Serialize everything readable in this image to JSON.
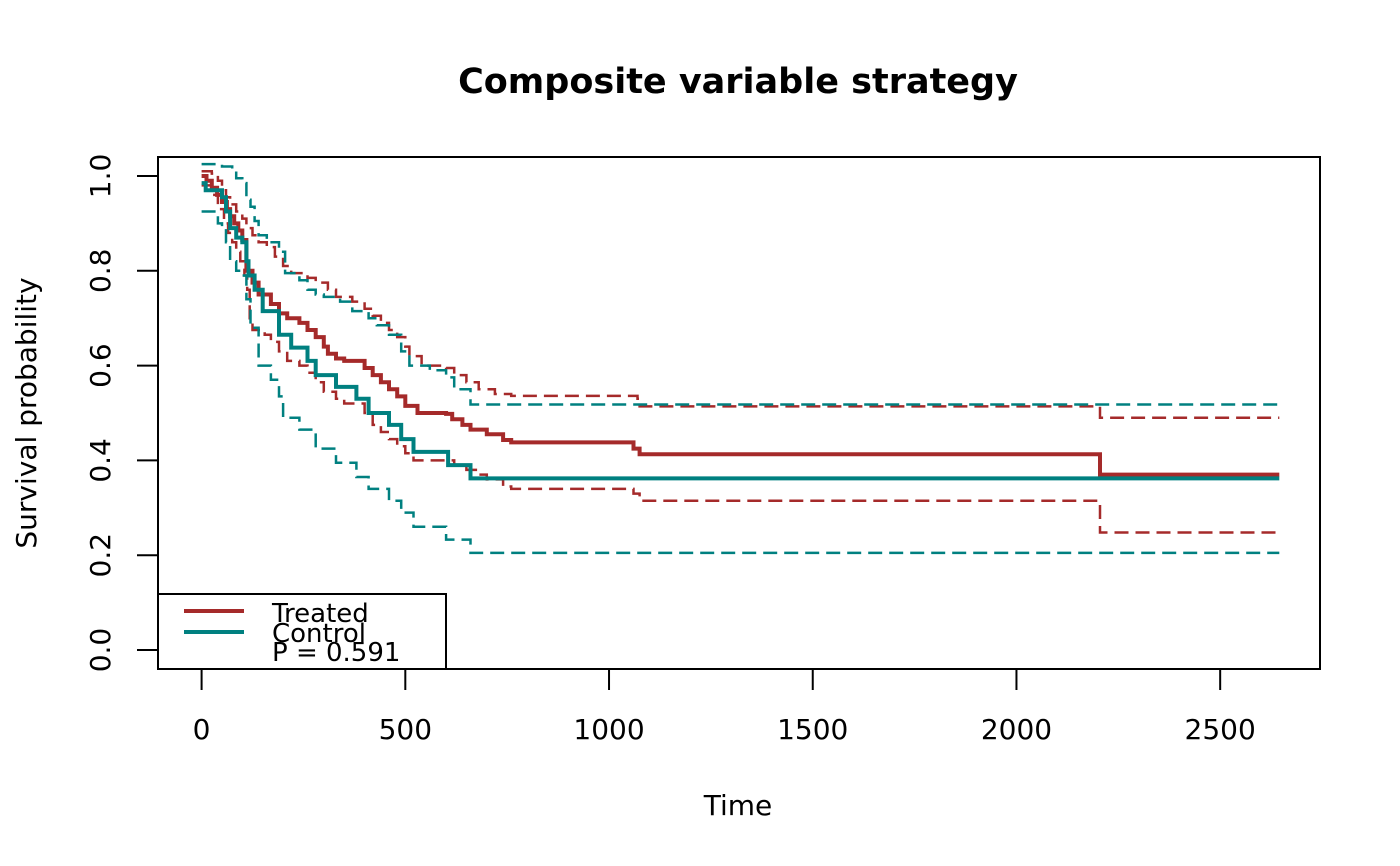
{
  "chart_data": {
    "type": "line",
    "subtype": "kaplan-meier-step",
    "title": "Composite variable strategy",
    "xlabel": "Time",
    "ylabel": "Survival probability",
    "xlim": [
      -107,
      2745
    ],
    "ylim": [
      -0.04,
      1.04
    ],
    "xticks": [
      0,
      500,
      1000,
      1500,
      2000,
      2500
    ],
    "yticks": [
      0.0,
      0.2,
      0.4,
      0.6,
      0.8,
      1.0
    ],
    "xtick_labels": [
      "0",
      "500",
      "1000",
      "1500",
      "2000",
      "2500"
    ],
    "ytick_labels": [
      "0.0",
      "0.2",
      "0.4",
      "0.6",
      "0.8",
      "1.0"
    ],
    "grid": false,
    "legend": {
      "position": "bottom-left",
      "entries": [
        "Treated",
        "Control"
      ],
      "note": "P = 0.591"
    },
    "series": [
      {
        "name": "Treated",
        "color": "#a52a2a",
        "style": "solid",
        "points": [
          [
            0,
            1.0
          ],
          [
            12,
            0.99
          ],
          [
            25,
            0.975
          ],
          [
            38,
            0.96
          ],
          [
            50,
            0.945
          ],
          [
            62,
            0.93
          ],
          [
            70,
            0.915
          ],
          [
            80,
            0.9
          ],
          [
            90,
            0.885
          ],
          [
            100,
            0.865
          ],
          [
            110,
            0.8
          ],
          [
            125,
            0.775
          ],
          [
            140,
            0.75
          ],
          [
            170,
            0.73
          ],
          [
            190,
            0.71
          ],
          [
            210,
            0.7
          ],
          [
            240,
            0.69
          ],
          [
            260,
            0.675
          ],
          [
            280,
            0.66
          ],
          [
            300,
            0.64
          ],
          [
            310,
            0.625
          ],
          [
            330,
            0.615
          ],
          [
            350,
            0.61
          ],
          [
            400,
            0.595
          ],
          [
            420,
            0.58
          ],
          [
            440,
            0.565
          ],
          [
            460,
            0.55
          ],
          [
            480,
            0.535
          ],
          [
            500,
            0.515
          ],
          [
            530,
            0.5
          ],
          [
            600,
            0.498
          ],
          [
            615,
            0.487
          ],
          [
            640,
            0.475
          ],
          [
            660,
            0.465
          ],
          [
            700,
            0.455
          ],
          [
            740,
            0.443
          ],
          [
            760,
            0.438
          ],
          [
            1060,
            0.425
          ],
          [
            1075,
            0.413
          ],
          [
            2200,
            0.413
          ],
          [
            2205,
            0.37
          ],
          [
            2645,
            0.37
          ]
        ]
      },
      {
        "name": "Treated 95% CI upper",
        "color": "#a52a2a",
        "style": "dashed",
        "points": [
          [
            0,
            1.01
          ],
          [
            25,
            1.005
          ],
          [
            40,
            0.99
          ],
          [
            50,
            0.97
          ],
          [
            60,
            0.955
          ],
          [
            70,
            0.94
          ],
          [
            85,
            0.925
          ],
          [
            100,
            0.91
          ],
          [
            110,
            0.89
          ],
          [
            125,
            0.875
          ],
          [
            140,
            0.86
          ],
          [
            160,
            0.85
          ],
          [
            180,
            0.83
          ],
          [
            200,
            0.81
          ],
          [
            220,
            0.795
          ],
          [
            260,
            0.785
          ],
          [
            280,
            0.775
          ],
          [
            310,
            0.76
          ],
          [
            330,
            0.745
          ],
          [
            370,
            0.735
          ],
          [
            400,
            0.72
          ],
          [
            420,
            0.705
          ],
          [
            440,
            0.69
          ],
          [
            460,
            0.675
          ],
          [
            480,
            0.66
          ],
          [
            500,
            0.64
          ],
          [
            510,
            0.62
          ],
          [
            540,
            0.6
          ],
          [
            600,
            0.595
          ],
          [
            620,
            0.58
          ],
          [
            650,
            0.565
          ],
          [
            680,
            0.55
          ],
          [
            720,
            0.54
          ],
          [
            760,
            0.536
          ],
          [
            1070,
            0.53
          ],
          [
            1075,
            0.514
          ],
          [
            2200,
            0.514
          ],
          [
            2205,
            0.49
          ],
          [
            2645,
            0.49
          ]
        ]
      },
      {
        "name": "Treated 95% CI lower",
        "color": "#a52a2a",
        "style": "dashed",
        "points": [
          [
            0,
            0.98
          ],
          [
            25,
            0.96
          ],
          [
            40,
            0.93
          ],
          [
            55,
            0.9
          ],
          [
            65,
            0.88
          ],
          [
            75,
            0.86
          ],
          [
            85,
            0.84
          ],
          [
            95,
            0.82
          ],
          [
            105,
            0.79
          ],
          [
            112,
            0.76
          ],
          [
            118,
            0.7
          ],
          [
            125,
            0.675
          ],
          [
            155,
            0.665
          ],
          [
            170,
            0.65
          ],
          [
            190,
            0.63
          ],
          [
            210,
            0.61
          ],
          [
            240,
            0.6
          ],
          [
            260,
            0.585
          ],
          [
            280,
            0.565
          ],
          [
            300,
            0.545
          ],
          [
            330,
            0.53
          ],
          [
            350,
            0.52
          ],
          [
            400,
            0.5
          ],
          [
            420,
            0.475
          ],
          [
            440,
            0.46
          ],
          [
            460,
            0.445
          ],
          [
            480,
            0.43
          ],
          [
            500,
            0.415
          ],
          [
            520,
            0.4
          ],
          [
            600,
            0.4
          ],
          [
            620,
            0.39
          ],
          [
            650,
            0.38
          ],
          [
            680,
            0.37
          ],
          [
            700,
            0.36
          ],
          [
            740,
            0.345
          ],
          [
            760,
            0.34
          ],
          [
            1060,
            0.33
          ],
          [
            1075,
            0.315
          ],
          [
            2200,
            0.315
          ],
          [
            2205,
            0.248
          ],
          [
            2645,
            0.248
          ]
        ]
      },
      {
        "name": "Control",
        "color": "#008080",
        "style": "solid",
        "points": [
          [
            0,
            0.985
          ],
          [
            10,
            0.97
          ],
          [
            50,
            0.955
          ],
          [
            60,
            0.925
          ],
          [
            70,
            0.89
          ],
          [
            85,
            0.87
          ],
          [
            100,
            0.86
          ],
          [
            110,
            0.82
          ],
          [
            115,
            0.79
          ],
          [
            130,
            0.76
          ],
          [
            150,
            0.715
          ],
          [
            190,
            0.665
          ],
          [
            220,
            0.638
          ],
          [
            260,
            0.61
          ],
          [
            280,
            0.58
          ],
          [
            330,
            0.555
          ],
          [
            380,
            0.53
          ],
          [
            410,
            0.5
          ],
          [
            460,
            0.475
          ],
          [
            490,
            0.445
          ],
          [
            520,
            0.418
          ],
          [
            605,
            0.39
          ],
          [
            660,
            0.362
          ],
          [
            2645,
            0.362
          ]
        ]
      },
      {
        "name": "Control 95% CI upper",
        "color": "#008080",
        "style": "dashed",
        "points": [
          [
            0,
            1.025
          ],
          [
            50,
            1.02
          ],
          [
            75,
            1.015
          ],
          [
            85,
            0.995
          ],
          [
            100,
            0.985
          ],
          [
            110,
            0.95
          ],
          [
            120,
            0.935
          ],
          [
            130,
            0.905
          ],
          [
            140,
            0.875
          ],
          [
            160,
            0.86
          ],
          [
            190,
            0.84
          ],
          [
            205,
            0.795
          ],
          [
            240,
            0.78
          ],
          [
            260,
            0.76
          ],
          [
            280,
            0.75
          ],
          [
            300,
            0.745
          ],
          [
            340,
            0.735
          ],
          [
            370,
            0.715
          ],
          [
            410,
            0.7
          ],
          [
            430,
            0.685
          ],
          [
            460,
            0.665
          ],
          [
            490,
            0.63
          ],
          [
            510,
            0.6
          ],
          [
            560,
            0.59
          ],
          [
            600,
            0.575
          ],
          [
            620,
            0.55
          ],
          [
            660,
            0.518
          ],
          [
            2645,
            0.518
          ]
        ]
      },
      {
        "name": "Control 95% CI lower",
        "color": "#008080",
        "style": "dashed",
        "points": [
          [
            0,
            0.925
          ],
          [
            40,
            0.9
          ],
          [
            50,
            0.89
          ],
          [
            60,
            0.86
          ],
          [
            70,
            0.82
          ],
          [
            85,
            0.8
          ],
          [
            100,
            0.79
          ],
          [
            110,
            0.74
          ],
          [
            120,
            0.68
          ],
          [
            140,
            0.6
          ],
          [
            170,
            0.57
          ],
          [
            190,
            0.535
          ],
          [
            200,
            0.49
          ],
          [
            240,
            0.465
          ],
          [
            280,
            0.425
          ],
          [
            330,
            0.395
          ],
          [
            380,
            0.365
          ],
          [
            410,
            0.34
          ],
          [
            460,
            0.315
          ],
          [
            490,
            0.29
          ],
          [
            520,
            0.26
          ],
          [
            600,
            0.233
          ],
          [
            660,
            0.205
          ],
          [
            2645,
            0.205
          ]
        ]
      }
    ]
  }
}
